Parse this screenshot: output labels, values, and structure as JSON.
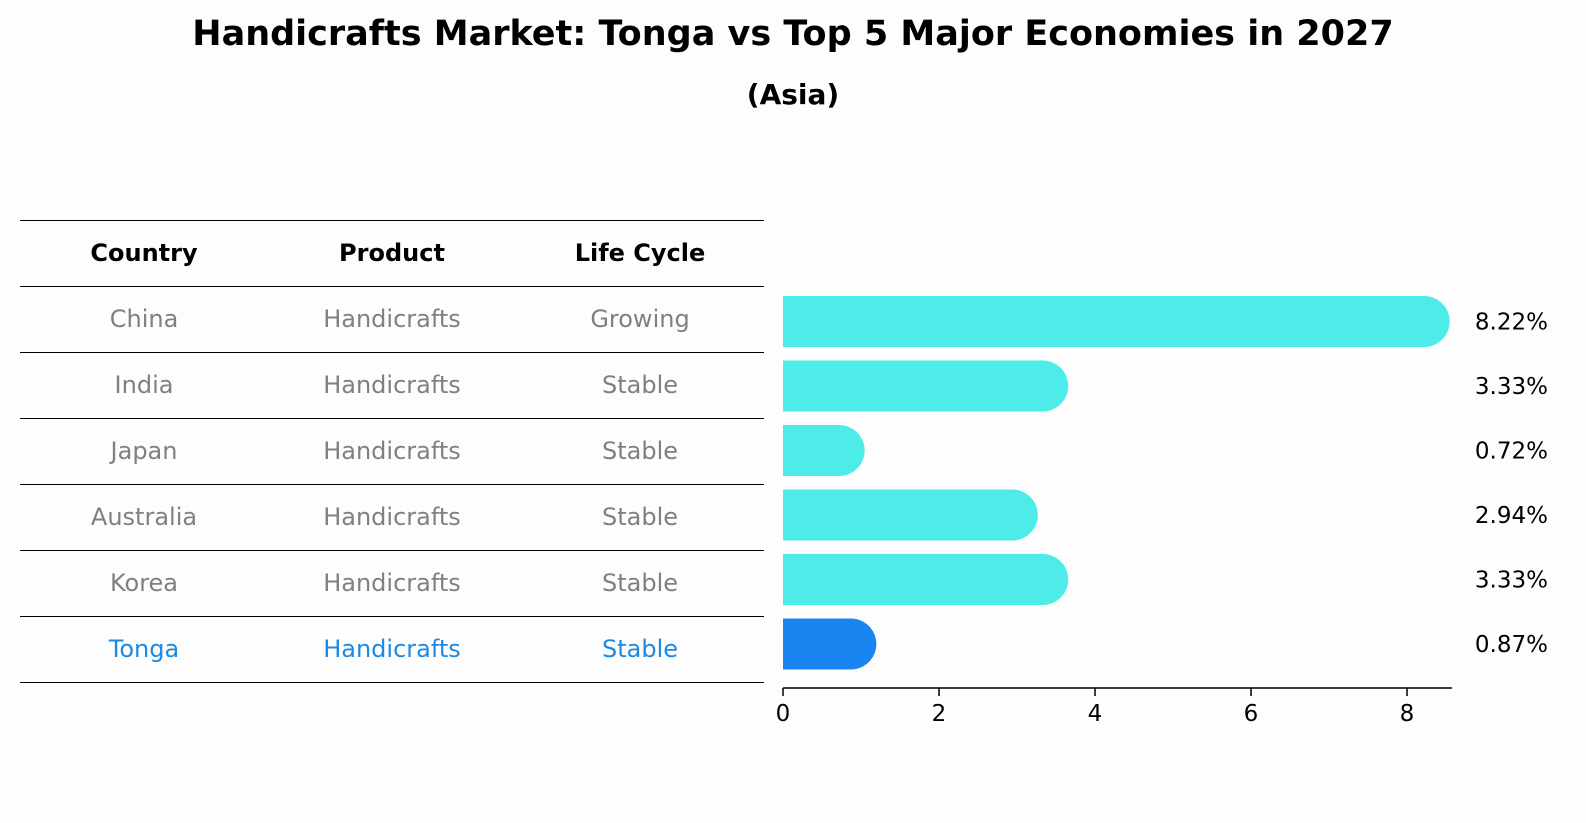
{
  "header": {
    "title": "Handicrafts Market: Tonga vs Top 5 Major Economies in 2027",
    "subtitle": "(Asia)"
  },
  "table": {
    "columns": [
      "Country",
      "Product",
      "Life Cycle"
    ],
    "rows": [
      {
        "country": "China",
        "product": "Handicrafts",
        "life_cycle": "Growing"
      },
      {
        "country": "India",
        "product": "Handicrafts",
        "life_cycle": "Stable"
      },
      {
        "country": "Japan",
        "product": "Handicrafts",
        "life_cycle": "Stable"
      },
      {
        "country": "Australia",
        "product": "Handicrafts",
        "life_cycle": "Stable"
      },
      {
        "country": "Korea",
        "product": "Handicrafts",
        "life_cycle": "Stable"
      },
      {
        "country": "Tonga",
        "product": "Handicrafts",
        "life_cycle": "Stable"
      }
    ],
    "highlight_country": "Tonga"
  },
  "colors": {
    "bar": "#4dece9",
    "highlight": "#1a85f0",
    "text_muted": "#808080",
    "text_highlight": "#1e88e5"
  },
  "chart_data": {
    "type": "bar",
    "orientation": "horizontal",
    "categories": [
      "China",
      "India",
      "Japan",
      "Australia",
      "Korea",
      "Tonga"
    ],
    "values": [
      8.22,
      3.33,
      0.72,
      2.94,
      3.33,
      0.87
    ],
    "value_labels": [
      "8.22%",
      "3.33%",
      "0.72%",
      "2.94%",
      "3.33%",
      "0.87%"
    ],
    "xticks": [
      0,
      2,
      4,
      6,
      8
    ],
    "xlim": [
      0,
      8.6
    ],
    "highlight": "Tonga"
  }
}
